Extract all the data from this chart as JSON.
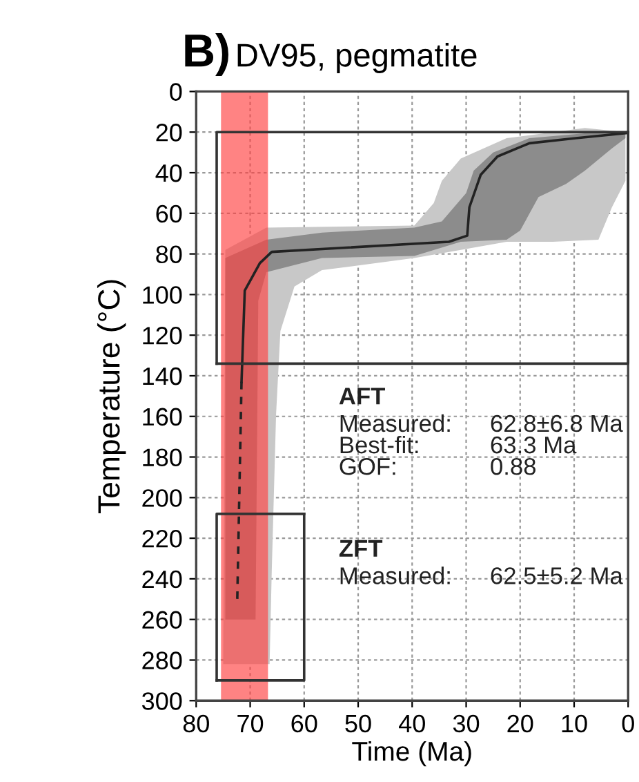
{
  "chart_data": {
    "type": "line",
    "title": "B)",
    "subtitle": "DV95, pegmatite",
    "xlabel": "Time (Ma)",
    "ylabel": "Temperature (°C)",
    "xlim": [
      80,
      0
    ],
    "xticks": [
      80,
      70,
      60,
      50,
      40,
      30,
      20,
      10,
      0
    ],
    "ylim": [
      300,
      0
    ],
    "yticks": [
      0,
      20,
      40,
      60,
      80,
      100,
      120,
      140,
      160,
      180,
      200,
      220,
      240,
      260,
      280,
      300
    ],
    "grid": true,
    "series": [
      {
        "type": "area",
        "color": "#c8c8c8",
        "x": [
          75,
          74.6,
          67,
          39.6,
          36,
          34.5,
          31,
          22.5,
          8,
          0.5,
          0.5,
          3,
          5.5,
          14,
          22.5,
          31,
          39.6,
          56.7,
          61.8,
          64.4,
          65.2,
          66,
          66.4,
          75
        ],
        "values": [
          282,
          78,
          67,
          66,
          55,
          44,
          33,
          23,
          18,
          20,
          44,
          57,
          73,
          74,
          74,
          78,
          82,
          88,
          96,
          118,
          159,
          236,
          282,
          282
        ]
      },
      {
        "type": "area",
        "color": "#8c8c8c",
        "x": [
          74.6,
          74.6,
          67,
          56.7,
          39.6,
          34.5,
          30,
          28.6,
          25,
          18.3,
          5.5,
          0.5,
          0.5,
          3,
          8,
          11.5,
          16.6,
          20,
          22.5,
          31,
          39.6,
          56.7,
          67,
          68.5,
          69,
          74.6
        ],
        "values": [
          260,
          82,
          73,
          69.5,
          67,
          64,
          50,
          39,
          30,
          23,
          20,
          20,
          23,
          28,
          39,
          45.5,
          52,
          68.5,
          73,
          74,
          81,
          82,
          89,
          103,
          260,
          260
        ]
      },
      {
        "color": "#222222",
        "line_style": "solid",
        "x": [
          0.4,
          9.7,
          18.3,
          24.2,
          27.3,
          29.4,
          29.8,
          33.2,
          66,
          68.2,
          71,
          71.6
        ],
        "values": [
          20.5,
          23,
          25.5,
          32,
          41,
          57,
          71,
          74,
          79,
          84.5,
          98,
          143
        ]
      },
      {
        "color": "#222222",
        "line_style": "dashed",
        "x": [
          71.6,
          72.4
        ],
        "values": [
          143,
          252
        ]
      },
      {
        "color": "#333333",
        "line_style": "solid",
        "x": [
          76.2,
          76.2,
          0
        ],
        "values": [
          134,
          20,
          20
        ]
      },
      {
        "color": "#333333",
        "line_style": "solid",
        "x": [
          76.2,
          0,
          0
        ],
        "values": [
          134,
          134,
          20
        ]
      },
      {
        "color": "#333333",
        "line_style": "solid",
        "x": [
          76.2,
          76.2,
          60
        ],
        "values": [
          290,
          208,
          208
        ]
      },
      {
        "color": "#333333",
        "line_style": "solid",
        "x": [
          76.2,
          60,
          60
        ],
        "values": [
          290,
          290,
          208
        ]
      }
    ],
    "bands": [
      {
        "axis": "x",
        "from": 75.4,
        "to": 66.7,
        "color": "#ff4040"
      }
    ],
    "annotations": [
      "AFT",
      "Measured:\nBest-fit:\nGOF:",
      "62.8±6.8 Ma\n63.3 Ma\n0.88",
      "ZFT",
      "Measured:",
      "62.5±5.2 Ma"
    ]
  }
}
